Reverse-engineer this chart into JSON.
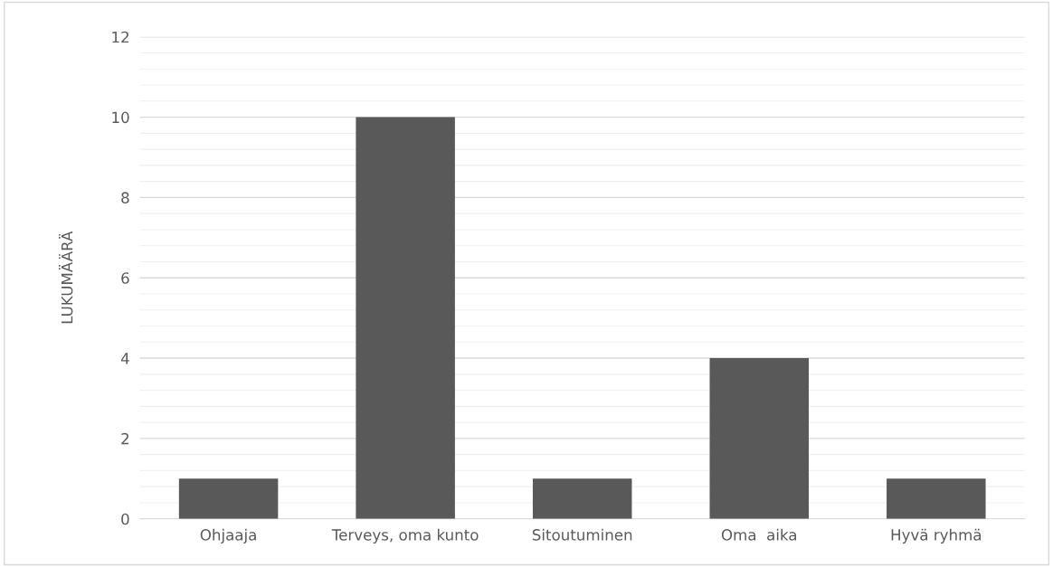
{
  "chart_data": {
    "type": "bar",
    "ylabel": "LUKUMÄÄRÄ",
    "categories": [
      "Ohjaaja",
      "Terveys, oma kunto",
      "Sitoutuminen",
      "Oma  aika",
      "Hyvä ryhmä"
    ],
    "values": [
      1,
      10,
      1,
      4,
      1
    ],
    "color": "#595959",
    "ylim": [
      0,
      12
    ],
    "yticks": [
      0,
      2,
      4,
      6,
      8,
      10,
      12
    ],
    "grid": "y",
    "legend": false
  }
}
